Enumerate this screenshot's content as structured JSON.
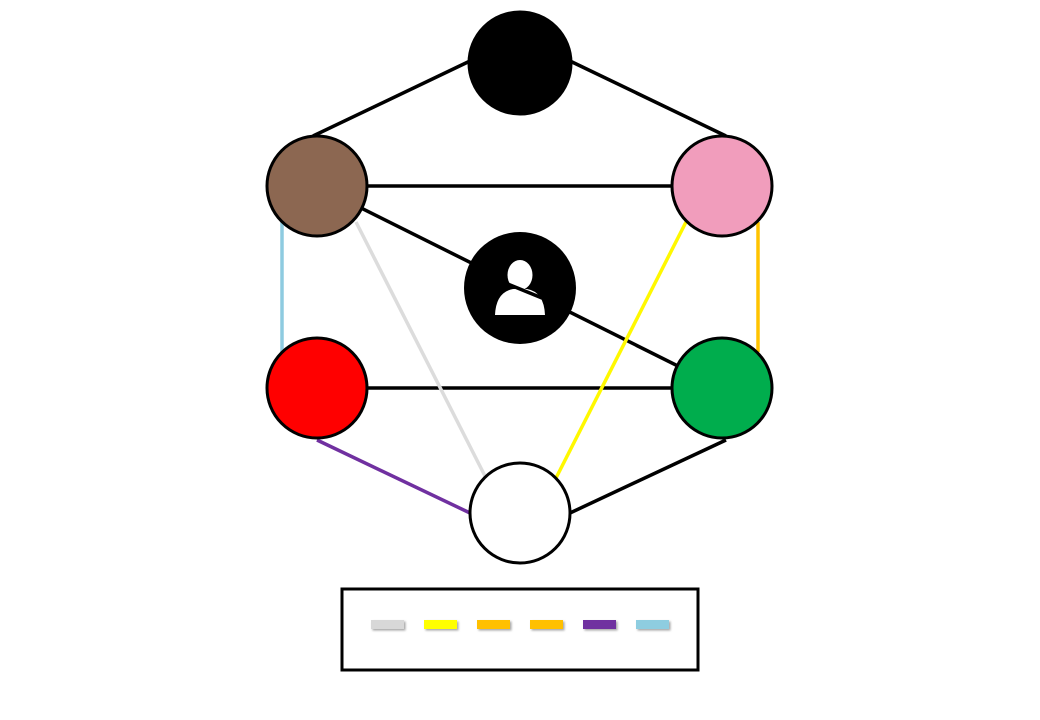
{
  "nodes": [
    {
      "id": "top",
      "color": "#000000",
      "kind": "circle"
    },
    {
      "id": "upper-left",
      "color": "#8C6751",
      "kind": "circle"
    },
    {
      "id": "upper-right",
      "color": "#F19DBC",
      "kind": "circle"
    },
    {
      "id": "center",
      "color": "#000000",
      "kind": "avatar",
      "icon": "person-icon"
    },
    {
      "id": "lower-left",
      "color": "#FF0000",
      "kind": "circle"
    },
    {
      "id": "lower-right",
      "color": "#00AD4D",
      "kind": "circle"
    },
    {
      "id": "bottom",
      "color": "#FFFFFF",
      "kind": "circle"
    }
  ],
  "edges": [
    {
      "from": "top",
      "to": "upper-left",
      "color": "#000000"
    },
    {
      "from": "top",
      "to": "upper-right",
      "color": "#000000"
    },
    {
      "from": "upper-left",
      "to": "upper-right",
      "color": "#000000"
    },
    {
      "from": "upper-left",
      "to": "lower-right",
      "color": "#000000"
    },
    {
      "from": "lower-left",
      "to": "lower-right",
      "color": "#000000"
    },
    {
      "from": "lower-right",
      "to": "bottom",
      "color": "#000000"
    },
    {
      "from": "upper-left",
      "to": "lower-left",
      "color": "#8ECBE0"
    },
    {
      "from": "upper-right",
      "to": "lower-right",
      "color": "#FFC300"
    },
    {
      "from": "upper-left",
      "to": "bottom",
      "color": "#DCDCDC"
    },
    {
      "from": "upper-right",
      "to": "bottom",
      "color": "#FFF800"
    },
    {
      "from": "lower-left",
      "to": "bottom",
      "color": "#7030A0"
    }
  ],
  "legend": {
    "swatches": [
      {
        "color": "#D8D8D8"
      },
      {
        "color": "#FFFF00"
      },
      {
        "color": "#FFC000"
      },
      {
        "color": "#FFC000"
      },
      {
        "color": "#7030A0"
      },
      {
        "color": "#8ECDE0"
      }
    ]
  }
}
